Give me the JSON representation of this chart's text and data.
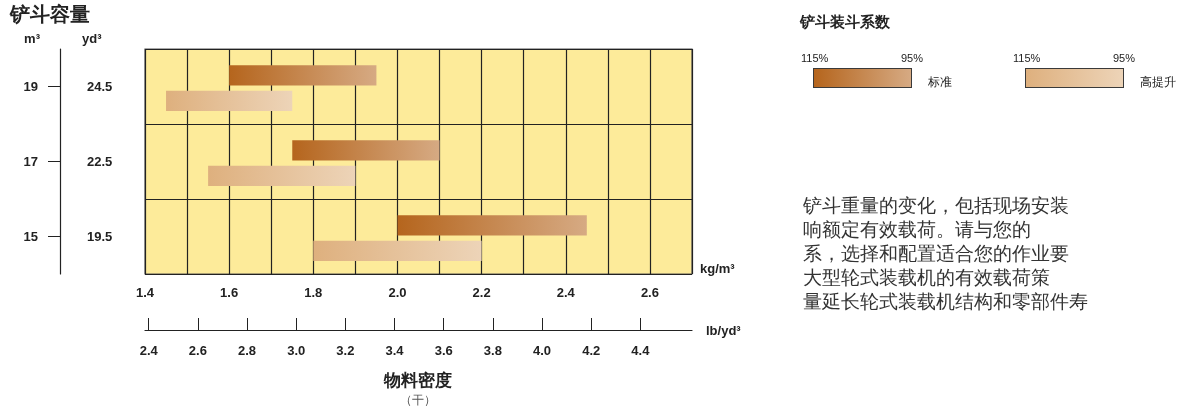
{
  "chart_data": {
    "type": "bar",
    "orientation": "horizontal",
    "title": "铲斗容量",
    "xlabel": "物料密度",
    "ylabel": "m³",
    "y2label": "yd³",
    "x2label": "lb/yd³",
    "legend_title": "铲斗装斗系数",
    "categories": [
      "19",
      "17",
      "15"
    ],
    "y2_categories": [
      "24.5",
      "22.5",
      "19.5"
    ],
    "series": [
      {
        "name": "标准",
        "color": "#b5651d",
        "base": [
          1.6,
          1.75,
          2.0
        ],
        "values": [
          0.35,
          0.35,
          0.45
        ]
      },
      {
        "name": "高提升",
        "color": "#deb07e",
        "base": [
          1.45,
          1.55,
          1.8
        ],
        "values": [
          0.3,
          0.35,
          0.4
        ]
      }
    ],
    "xlim": [
      1.4,
      2.7
    ],
    "xticks": [
      1.4,
      {
        "value": 1.5,
        "label": null
      },
      1.6,
      {
        "value": 1.7,
        "label": null
      },
      1.8,
      {
        "value": 1.9,
        "label": null
      },
      {
        "value": 2,
        "label": "2.0"
      },
      {
        "value": 2.1,
        "label": null
      },
      2.2,
      {
        "value": 2.3,
        "label": null
      },
      2.4,
      {
        "value": 2.5,
        "label": null
      },
      2.6,
      {
        "value": 2.7,
        "label": null
      }
    ],
    "x2lim": [
      2.385,
      4.61
    ],
    "x2ticks": [
      2.4,
      2.6,
      2.8,
      {
        "value": 3,
        "label": "3.0"
      },
      3.2,
      3.4,
      3.6,
      3.8,
      {
        "value": 4,
        "label": "4.0"
      },
      4.2,
      4.4
    ],
    "grid": true,
    "legend": "top right",
    "annotations": [
      "115%",
      "95%",
      "115%",
      "95%",
      "kg/m³",
      "（干）",
      "铲斗重量的变化，包括现场安装",
      "响额定有效载荷。请与您的",
      "系，选择和配置适合您的作业要",
      "大型轮式装载机的有效载荷策",
      "量延长轮式装载机结构和零部件寿"
    ]
  }
}
